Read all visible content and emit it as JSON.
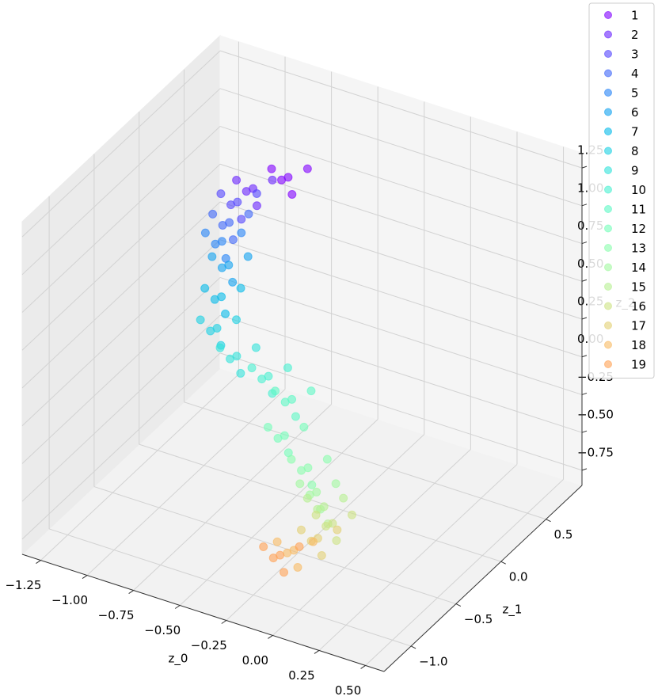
{
  "chart_data": {
    "type": "scatter3d",
    "xlabel": "z_0",
    "ylabel": "z_1",
    "zlabel": "z_2",
    "xlim": [
      -1.35,
      0.6
    ],
    "ylim": [
      -1.3,
      0.9
    ],
    "zlim": [
      -0.85,
      1.35
    ],
    "xticks": [
      {
        "value": -1.25,
        "label": "−1.25"
      },
      {
        "value": -1,
        "label": "−1.00"
      },
      {
        "value": -0.75,
        "label": "−0.75"
      },
      {
        "value": -0.5,
        "label": "−0.50"
      },
      {
        "value": -0.25,
        "label": "−0.25"
      },
      {
        "value": 0,
        "label": "0.00"
      },
      0.25,
      {
        "value": 0.5,
        "label": "0.50"
      }
    ],
    "yticks": [
      {
        "value": -1,
        "label": "−1.0"
      },
      {
        "value": -0.5,
        "label": "−0.5"
      },
      {
        "value": 0,
        "label": "0.0"
      },
      0.5
    ],
    "zticks": [
      {
        "value": -0.75,
        "label": "−0.75"
      },
      {
        "value": -0.5,
        "label": "−0.50"
      },
      {
        "value": -0.25,
        "label": "−0.25"
      },
      {
        "value": 0,
        "label": "0.00"
      },
      0.25,
      {
        "value": 0.5,
        "label": "0.50"
      },
      0.75,
      {
        "value": 1,
        "label": "1.00"
      },
      1.25
    ],
    "grid": true,
    "legend": "upper right",
    "series": [
      {
        "name": "1",
        "color": "#8000ff",
        "x": [
          -0.77,
          -0.69,
          -0.84,
          -0.72,
          -0.83
        ],
        "y": [
          0.46,
          0.51,
          0.42,
          0.4,
          0.51
        ],
        "z": [
          0.89,
          0.95,
          0.94,
          0.83,
          0.82
        ]
      },
      {
        "name": "2",
        "color": "#6923fe",
        "x": [
          -0.94,
          -0.86,
          -1.01,
          -0.89,
          -1.0
        ],
        "y": [
          0.42,
          0.47,
          0.38,
          0.36,
          0.47
        ],
        "z": [
          0.77,
          0.83,
          0.82,
          0.71,
          0.7
        ]
      },
      {
        "name": "3",
        "color": "#5345fd",
        "x": [
          -0.99,
          -0.91,
          -1.06,
          -0.94,
          -1.05
        ],
        "y": [
          0.35,
          0.4,
          0.31,
          0.29,
          0.4
        ],
        "z": [
          0.7,
          0.76,
          0.75,
          0.64,
          0.63
        ]
      },
      {
        "name": "4",
        "color": "#3d66f9",
        "x": [
          -1.0,
          -0.92,
          -1.07,
          -0.95,
          -1.06
        ],
        "y": [
          0.28,
          0.33,
          0.24,
          0.22,
          0.33
        ],
        "z": [
          0.6,
          0.66,
          0.65,
          0.54,
          0.53
        ]
      },
      {
        "name": "5",
        "color": "#2784f6",
        "x": [
          -1.02,
          -0.94,
          -1.09,
          -0.97,
          -1.08
        ],
        "y": [
          0.24,
          0.29,
          0.2,
          0.18,
          0.29
        ],
        "z": [
          0.49,
          0.55,
          0.54,
          0.43,
          0.42
        ]
      },
      {
        "name": "6",
        "color": "#11a1f0",
        "x": [
          -0.95,
          -0.87,
          -1.02,
          -0.9,
          -1.01
        ],
        "y": [
          0.17,
          0.22,
          0.13,
          0.11,
          0.22
        ],
        "z": [
          0.4,
          0.46,
          0.45,
          0.34,
          0.33
        ]
      },
      {
        "name": "7",
        "color": "#06bae9",
        "x": [
          -0.96,
          -0.88,
          -1.03,
          -0.91,
          -1.02
        ],
        "y": [
          0.11,
          0.16,
          0.07,
          0.05,
          0.16
        ],
        "z": [
          0.22,
          0.28,
          0.27,
          0.16,
          0.15
        ]
      },
      {
        "name": "8",
        "color": "#1cd0e2",
        "x": [
          -0.94,
          -0.86,
          -1.01,
          -0.89,
          -1.0
        ],
        "y": [
          0.02,
          0.07,
          -0.02,
          -0.04,
          0.07
        ],
        "z": [
          0.07,
          0.13,
          0.12,
          0.01,
          0.0
        ]
      },
      {
        "name": "9",
        "color": "#32e2da",
        "x": [
          -0.8,
          -0.72,
          -0.87,
          -0.75,
          -0.86
        ],
        "y": [
          -0.05,
          0.0,
          -0.09,
          -0.11,
          0.0
        ],
        "z": [
          -0.02,
          0.04,
          0.03,
          -0.08,
          -0.09
        ]
      },
      {
        "name": "10",
        "color": "#48f0d0",
        "x": [
          -0.6,
          -0.52,
          -0.67,
          -0.55,
          -0.66
        ],
        "y": [
          -0.11,
          -0.06,
          -0.15,
          -0.17,
          -0.06
        ],
        "z": [
          -0.04,
          0.02,
          0.01,
          -0.1,
          -0.11
        ]
      },
      {
        "name": "11",
        "color": "#5ef9c5",
        "x": [
          -0.44,
          -0.36,
          -0.51,
          -0.39,
          -0.5
        ],
        "y": [
          -0.18,
          -0.13,
          -0.22,
          -0.24,
          -0.13
        ],
        "z": [
          -0.09,
          -0.03,
          -0.04,
          -0.15,
          -0.16
        ]
      },
      {
        "name": "12",
        "color": "#74feb9",
        "x": [
          -0.45,
          -0.37,
          -0.52,
          -0.4,
          -0.51
        ],
        "y": [
          -0.24,
          -0.19,
          -0.28,
          -0.3,
          -0.19
        ],
        "z": [
          -0.3,
          -0.24,
          -0.25,
          -0.36,
          -0.37
        ]
      },
      {
        "name": "13",
        "color": "#8afead",
        "x": [
          -0.29,
          -0.21,
          -0.36,
          -0.24,
          -0.35
        ],
        "y": [
          -0.31,
          -0.26,
          -0.35,
          -0.37,
          -0.26
        ],
        "z": [
          -0.41,
          -0.35,
          -0.36,
          -0.47,
          -0.48
        ]
      },
      {
        "name": "14",
        "color": "#a1f9a0",
        "x": [
          -0.21,
          -0.13,
          -0.28,
          -0.16,
          -0.27
        ],
        "y": [
          -0.38,
          -0.33,
          -0.42,
          -0.44,
          -0.33
        ],
        "z": [
          -0.5,
          -0.44,
          -0.45,
          -0.56,
          -0.57
        ]
      },
      {
        "name": "15",
        "color": "#b7f092",
        "x": [
          -0.15,
          -0.07,
          -0.22,
          -0.1,
          -0.21
        ],
        "y": [
          -0.42,
          -0.37,
          -0.46,
          -0.48,
          -0.37
        ],
        "z": [
          -0.55,
          -0.49,
          -0.5,
          -0.61,
          -0.62
        ]
      },
      {
        "name": "16",
        "color": "#cde283",
        "x": [
          -0.07,
          0.01,
          -0.14,
          -0.02,
          -0.13
        ],
        "y": [
          -0.49,
          -0.44,
          -0.53,
          -0.55,
          -0.44
        ],
        "z": [
          -0.59,
          -0.53,
          -0.54,
          -0.65,
          -0.66
        ]
      },
      {
        "name": "17",
        "color": "#e3d074",
        "x": [
          -0.13,
          -0.05,
          -0.2,
          -0.08,
          -0.19
        ],
        "y": [
          -0.53,
          -0.48,
          -0.57,
          -0.59,
          -0.48
        ],
        "z": [
          -0.69,
          -0.63,
          -0.64,
          -0.75,
          -0.76
        ]
      },
      {
        "name": "18",
        "color": "#f9ba64",
        "x": [
          -0.24,
          -0.16,
          -0.31,
          -0.19,
          -0.3
        ],
        "y": [
          -0.57,
          -0.52,
          -0.61,
          -0.63,
          -0.52
        ],
        "z": [
          -0.79,
          -0.73,
          -0.74,
          -0.85,
          -0.86
        ]
      },
      {
        "name": "19",
        "color": "#ffa155",
        "x": [
          -0.3,
          -0.22,
          -0.37,
          -0.25,
          -0.36
        ],
        "y": [
          -0.6,
          -0.55,
          -0.64,
          -0.66,
          -0.55
        ],
        "z": [
          -0.83,
          -0.77,
          -0.78,
          -0.89,
          -0.9
        ]
      }
    ]
  }
}
